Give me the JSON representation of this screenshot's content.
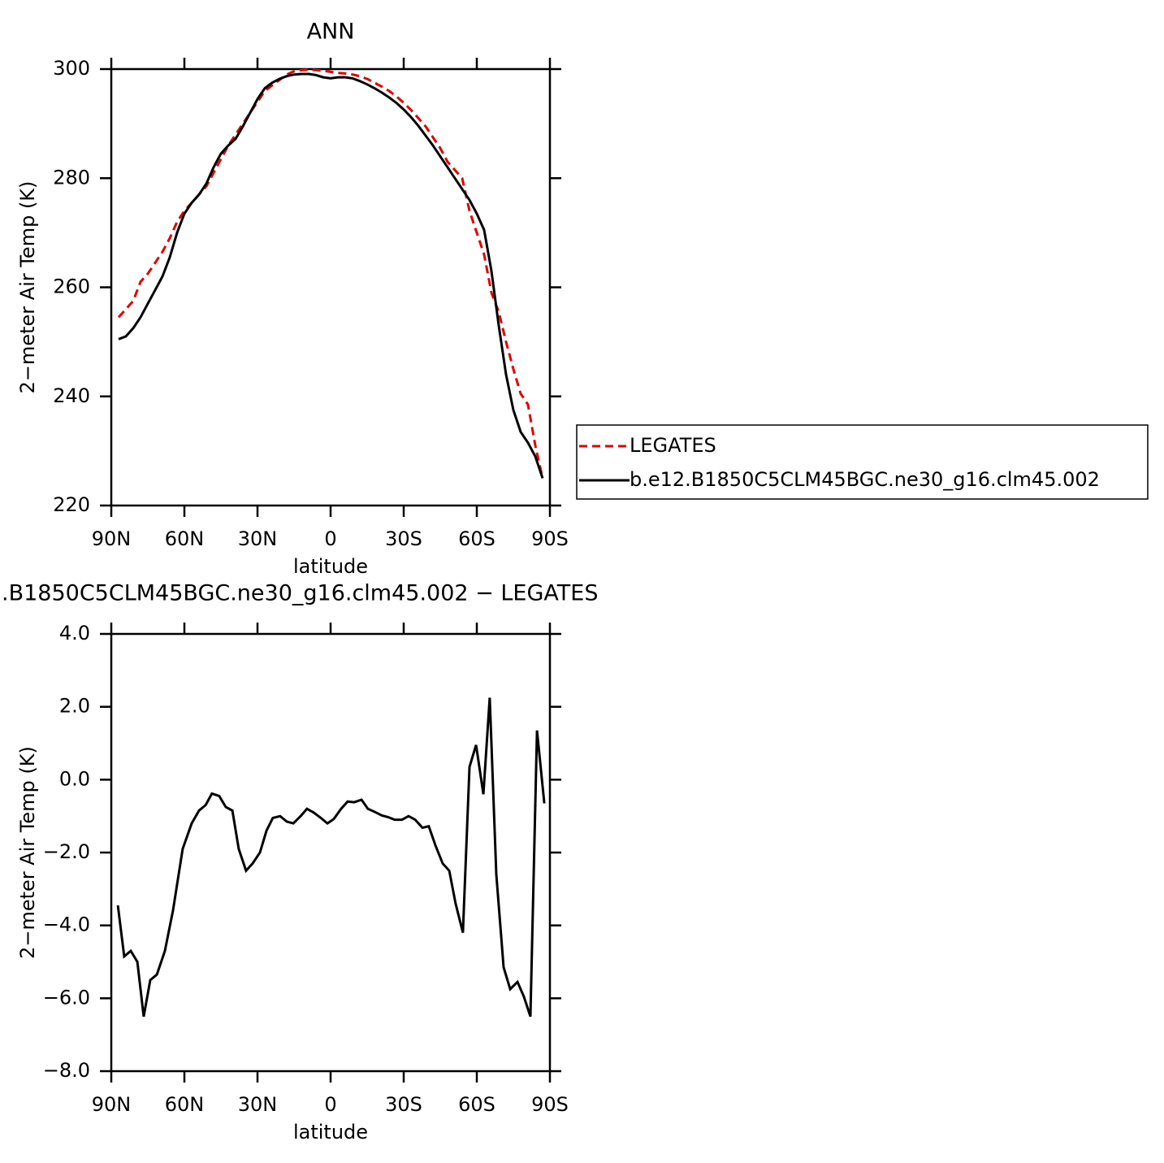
{
  "chart_data": [
    {
      "type": "line",
      "title": "ANN",
      "xlabel": "latitude",
      "ylabel": "2−meter Air Temp (K)",
      "x": [
        87,
        84,
        81,
        78,
        75,
        72,
        69,
        66,
        63,
        60,
        57,
        54,
        51,
        48,
        45,
        42,
        39,
        36,
        33,
        30,
        27,
        24,
        21,
        18,
        15,
        12,
        9,
        6,
        3,
        0,
        -3,
        -6,
        -9,
        -12,
        -15,
        -18,
        -21,
        -24,
        -27,
        -30,
        -33,
        -36,
        -39,
        -42,
        -45,
        -48,
        -51,
        -54,
        -57,
        -60,
        -63,
        -66,
        -69,
        -72,
        -75,
        -78,
        -81,
        -84,
        -87
      ],
      "series": [
        {
          "name": "LEGATES",
          "color": "#e00000",
          "linestyle": "dashed",
          "values": [
            254.5,
            256,
            257.5,
            261,
            262.5,
            264.5,
            266.5,
            269,
            272,
            274,
            275.5,
            277,
            278.5,
            281,
            283.5,
            286,
            288,
            290,
            292,
            294,
            296,
            297,
            298,
            299,
            299.6,
            299.8,
            299.9,
            299.8,
            299.7,
            299.5,
            299.3,
            299.2,
            299,
            298.7,
            298.2,
            297.5,
            296.8,
            296,
            295,
            293.8,
            292.5,
            291,
            289.5,
            287.5,
            285.5,
            283,
            281.5,
            280,
            274,
            270,
            266,
            259,
            255.5,
            250,
            245,
            240.5,
            238.5,
            231,
            225
          ]
        },
        {
          "name": "b.e12.B1850C5CLM45BGC.ne30_g16.clm45.002",
          "color": "#000000",
          "linestyle": "solid",
          "values": [
            250.5,
            251,
            252.5,
            254.5,
            257,
            259.5,
            262,
            265.5,
            270,
            273.5,
            275.5,
            277,
            279,
            282,
            284.5,
            286,
            287.2,
            289.5,
            292,
            294.5,
            296.5,
            297.5,
            298.2,
            298.7,
            299,
            299.1,
            299.1,
            298.9,
            298.5,
            298.3,
            298.5,
            298.5,
            298.3,
            297.8,
            297.2,
            296.5,
            295.7,
            294.8,
            293.8,
            292.6,
            291.2,
            289.6,
            287.8,
            286,
            284,
            282,
            280,
            278,
            276,
            273.5,
            270.5,
            263,
            253,
            244,
            237.5,
            233.5,
            231.5,
            229,
            225
          ]
        }
      ],
      "xlim": [
        90,
        -90
      ],
      "xticks": [
        {
          "value": 90,
          "label": "90N"
        },
        {
          "value": 60,
          "label": "60N"
        },
        {
          "value": 30,
          "label": "30N"
        },
        0,
        {
          "value": -30,
          "label": "30S"
        },
        {
          "value": -60,
          "label": "60S"
        },
        {
          "value": -90,
          "label": "90S"
        }
      ],
      "ylim": [
        220,
        300
      ],
      "yticks": [
        220,
        240,
        260,
        280,
        300
      ],
      "legend": "right"
    },
    {
      "type": "line",
      "title": ".B1850C5CLM45BGC.ne30_g16.clm45.002 − LEGATES",
      "xlabel": "latitude",
      "ylabel": "2−meter Air Temp (K)",
      "x": [
        87.3,
        84.7,
        82,
        79.3,
        76.7,
        74,
        71.3,
        68,
        64.7,
        60.7,
        57,
        54,
        51.3,
        48.7,
        45.7,
        43,
        40.3,
        37.7,
        34.7,
        32,
        29,
        26.3,
        23.7,
        20.7,
        18,
        15.3,
        12.3,
        9.7,
        7,
        4,
        1.3,
        -1.3,
        -4.3,
        -7,
        -9.7,
        -12.7,
        -15.3,
        -18,
        -21,
        -23.7,
        -26.3,
        -29.3,
        -32,
        -34.7,
        -37.7,
        -40.3,
        -43,
        -46,
        -48.7,
        -51.3,
        -54.3,
        -57,
        -59.7,
        -62.7,
        -65.3,
        -68,
        -71,
        -73.7,
        -76.7,
        -79.3,
        -82,
        -84.7,
        -87.7
      ],
      "series": [
        {
          "name": "b.e12.B1850C5CLM45BGC.ne30_g16.clm45.002",
          "color": "#000000",
          "linestyle": "solid",
          "values": [
            -3.45,
            -4.85,
            -4.7,
            -5.0,
            -6.5,
            -5.5,
            -5.35,
            -4.7,
            -3.6,
            -1.9,
            -1.2,
            -0.85,
            -0.7,
            -0.38,
            -0.45,
            -0.75,
            -0.85,
            -1.9,
            -2.5,
            -2.3,
            -2.0,
            -1.4,
            -1.05,
            -1.0,
            -1.15,
            -1.2,
            -1.0,
            -0.8,
            -0.9,
            -1.05,
            -1.2,
            -1.08,
            -0.8,
            -0.6,
            -0.62,
            -0.55,
            -0.8,
            -0.88,
            -0.98,
            -1.03,
            -1.1,
            -1.1,
            -1.0,
            -1.1,
            -1.32,
            -1.28,
            -1.8,
            -2.3,
            -2.5,
            -3.4,
            -4.2,
            0.35,
            0.95,
            -0.4,
            2.25,
            -2.6,
            -5.15,
            -5.75,
            -5.55,
            -5.95,
            -6.5,
            1.35,
            -0.65
          ]
        }
      ],
      "xlim": [
        90,
        -90
      ],
      "xticks": [
        {
          "value": 90,
          "label": "90N"
        },
        {
          "value": 60,
          "label": "60N"
        },
        {
          "value": 30,
          "label": "30N"
        },
        0,
        {
          "value": -30,
          "label": "30S"
        },
        {
          "value": -60,
          "label": "60S"
        },
        {
          "value": -90,
          "label": "90S"
        }
      ],
      "ylim": [
        -8,
        4
      ],
      "yticks": [
        {
          "value": -8,
          "label": "−8.0"
        },
        {
          "value": -6,
          "label": "−6.0"
        },
        {
          "value": -4,
          "label": "−4.0"
        },
        {
          "value": -2,
          "label": "−2.0"
        },
        {
          "value": 0,
          "label": "0.0"
        },
        {
          "value": 2,
          "label": "2.0"
        },
        {
          "value": 4,
          "label": "4.0"
        }
      ]
    }
  ]
}
